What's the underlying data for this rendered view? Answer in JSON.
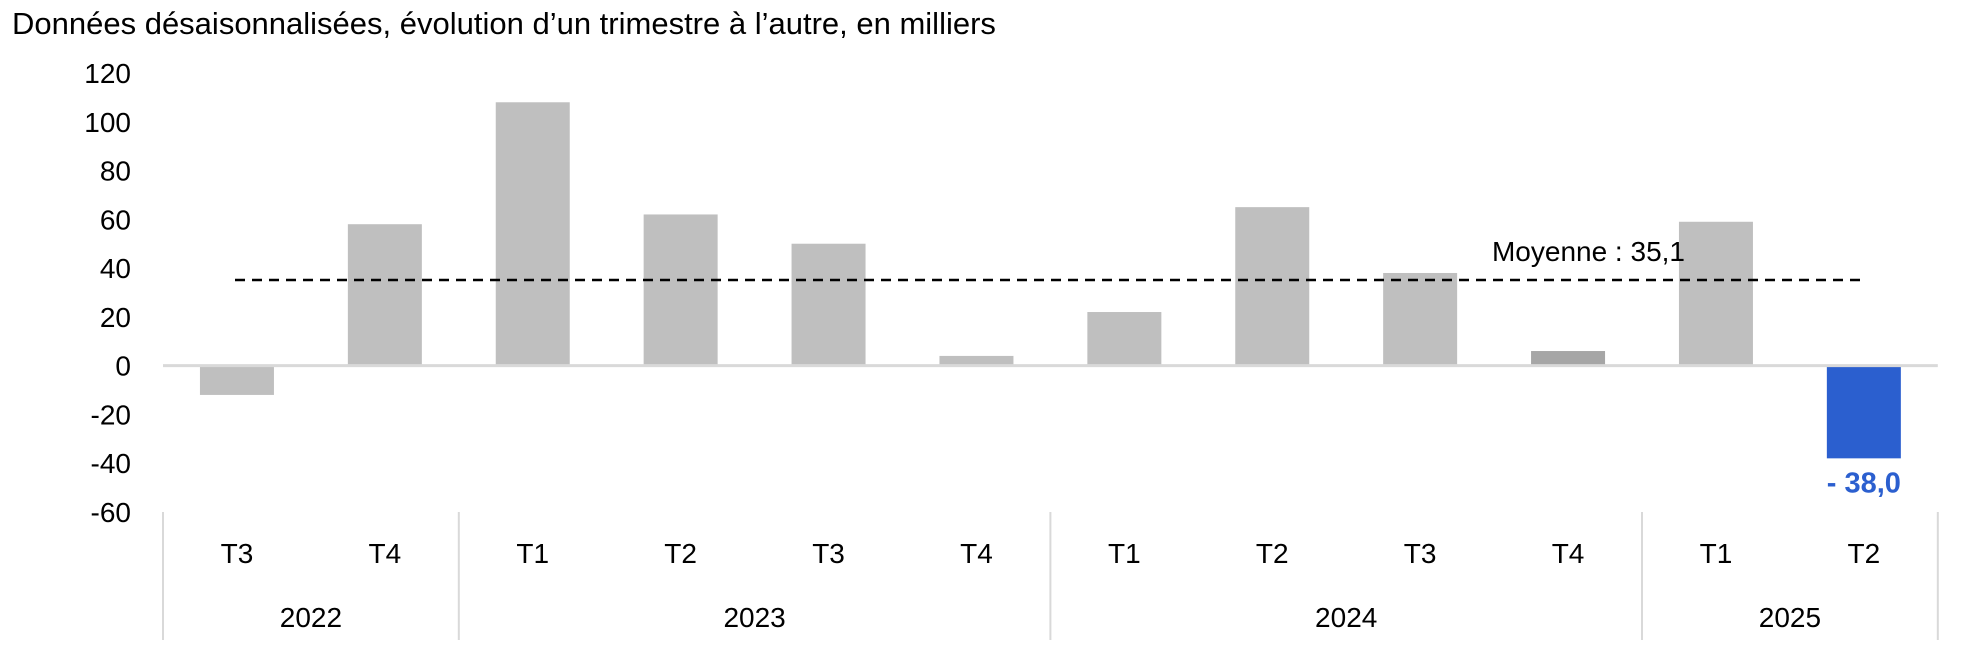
{
  "chart_data": {
    "type": "bar",
    "title": "Données désaisonnalisées, évolution d’un trimestre à l’autre, en milliers",
    "xlabel": "",
    "ylabel": "",
    "ylim": [
      -60,
      120
    ],
    "yticks": [
      120,
      100,
      80,
      60,
      40,
      20,
      0,
      -20,
      -40,
      -60
    ],
    "grid": false,
    "categories": [
      "T3",
      "T4",
      "T1",
      "T2",
      "T3",
      "T4",
      "T1",
      "T2",
      "T3",
      "T4",
      "T1",
      "T2"
    ],
    "years": [
      {
        "label": "2022",
        "span": 2
      },
      {
        "label": "2023",
        "span": 4
      },
      {
        "label": "2024",
        "span": 4
      },
      {
        "label": "2025",
        "span": 2
      }
    ],
    "values": [
      -12,
      58,
      108,
      62,
      50,
      4,
      22,
      65,
      38,
      6,
      59,
      -38.0
    ],
    "bar_colors": [
      "#bfbfbf",
      "#bfbfbf",
      "#bfbfbf",
      "#bfbfbf",
      "#bfbfbf",
      "#bfbfbf",
      "#bfbfbf",
      "#bfbfbf",
      "#bfbfbf",
      "#a6a6a6",
      "#bfbfbf",
      "#2b5fcf"
    ],
    "average": {
      "value": 35.1,
      "label": "Moyenne : 35,1"
    },
    "annotations": [
      {
        "index": 11,
        "text": "- 38,0",
        "color": "#2b5fcf"
      }
    ]
  }
}
